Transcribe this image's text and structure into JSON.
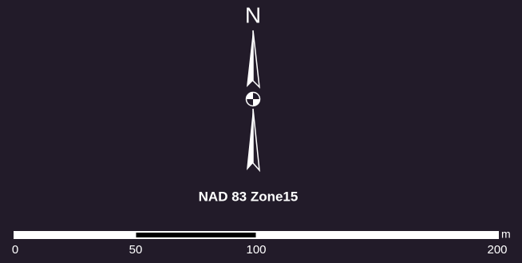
{
  "north_arrow": {
    "label": "N"
  },
  "projection": "NAD 83 Zone15",
  "scale_bar": {
    "ticks": [
      0,
      50,
      100,
      200
    ],
    "unit": "m"
  }
}
